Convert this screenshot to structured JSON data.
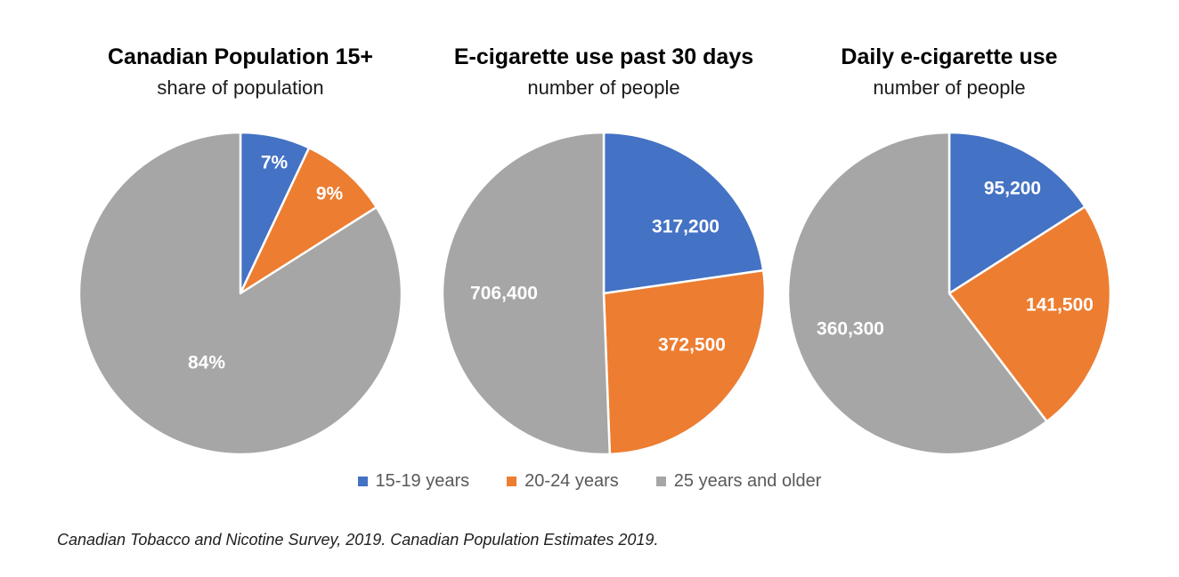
{
  "figure": {
    "footer_source": "Canadian Tobacco and Nicotine Survey, 2019. Canadian Population Estimates 2019."
  },
  "legend": {
    "position": "bottom-center-shared",
    "items": [
      {
        "label": "15-19 years",
        "color": "#4472C4"
      },
      {
        "label": "20-24 years",
        "color": "#ED7D31"
      },
      {
        "label": "25 years and older",
        "color": "#A6A6A6"
      }
    ]
  },
  "chart_data": [
    {
      "type": "pie",
      "title": "Canadian Population 15+",
      "subtitle": "share of population",
      "unit": "percent of population",
      "start_angle_deg": 0,
      "direction": "clockwise",
      "categories": [
        "15-19 years",
        "20-24 years",
        "25 years and older"
      ],
      "slices": [
        {
          "category": "15-19 years",
          "value": 7,
          "display": "7%",
          "color": "#4472C4",
          "label_offset": [
            38,
            -147
          ]
        },
        {
          "category": "20-24 years",
          "value": 9,
          "display": "9%",
          "color": "#ED7D31",
          "label_offset": [
            100,
            -112
          ]
        },
        {
          "category": "25 years and older",
          "value": 84,
          "display": "84%",
          "color": "#A6A6A6",
          "label_offset": [
            -38,
            78
          ]
        }
      ]
    },
    {
      "type": "pie",
      "title": "E-cigarette use past 30 days",
      "subtitle": "number of people",
      "unit": "people",
      "start_angle_deg": 0,
      "direction": "clockwise",
      "categories": [
        "15-19 years",
        "20-24 years",
        "25 years and older"
      ],
      "slices": [
        {
          "category": "15-19 years",
          "value": 317200,
          "display": "317,200",
          "color": "#4472C4",
          "label_offset": [
            92,
            -75
          ]
        },
        {
          "category": "20-24 years",
          "value": 372500,
          "display": "372,500",
          "color": "#ED7D31",
          "label_offset": [
            99,
            58
          ]
        },
        {
          "category": "25 years and older",
          "value": 706400,
          "display": "706,400",
          "color": "#A6A6A6",
          "label_offset": [
            -112,
            0
          ]
        }
      ]
    },
    {
      "type": "pie",
      "title": "Daily e-cigarette use",
      "subtitle": "number of people",
      "unit": "people",
      "start_angle_deg": 0,
      "direction": "clockwise",
      "categories": [
        "15-19 years",
        "20-24 years",
        "25 years and older"
      ],
      "slices": [
        {
          "category": "15-19 years",
          "value": 95200,
          "display": "95,200",
          "color": "#4472C4",
          "label_offset": [
            71,
            -118
          ]
        },
        {
          "category": "20-24 years",
          "value": 141500,
          "display": "141,500",
          "color": "#ED7D31",
          "label_offset": [
            124,
            13
          ]
        },
        {
          "category": "25 years and older",
          "value": 360300,
          "display": "360,300",
          "color": "#A6A6A6",
          "label_offset": [
            -111,
            40
          ]
        }
      ]
    }
  ]
}
